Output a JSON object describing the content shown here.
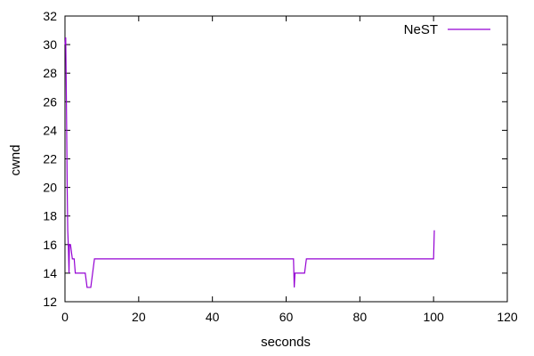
{
  "chart_data": {
    "type": "line",
    "title": "",
    "xlabel": "seconds",
    "ylabel": "cwnd",
    "xlim": [
      0,
      120
    ],
    "ylim": [
      12,
      32
    ],
    "xticks": [
      0,
      20,
      40,
      60,
      80,
      100,
      120
    ],
    "yticks": [
      12,
      14,
      16,
      18,
      20,
      22,
      24,
      26,
      28,
      30,
      32
    ],
    "grid": false,
    "legend_position": "top-right",
    "series": [
      {
        "name": "NeST",
        "color": "#9400D3",
        "x": [
          0,
          0.2,
          0.35,
          0.5,
          0.6,
          0.75,
          0.9,
          1.1,
          1.2,
          1.5,
          2.0,
          2.5,
          2.8,
          3.0,
          3.2,
          4.0,
          5.0,
          5.5,
          6.0,
          6.5,
          7.0,
          7.5,
          8.0,
          8.2,
          62.0,
          62.2,
          62.4,
          63.0,
          65.0,
          65.5,
          66.0,
          100.0,
          100.2
        ],
        "y": [
          30,
          30.5,
          27,
          23,
          20,
          17,
          16,
          14,
          16,
          16,
          15,
          15,
          14,
          14,
          14,
          14,
          14,
          14,
          13,
          13,
          13,
          14,
          15,
          15,
          15,
          13,
          14,
          14,
          14,
          15,
          15,
          15,
          17
        ]
      }
    ]
  }
}
